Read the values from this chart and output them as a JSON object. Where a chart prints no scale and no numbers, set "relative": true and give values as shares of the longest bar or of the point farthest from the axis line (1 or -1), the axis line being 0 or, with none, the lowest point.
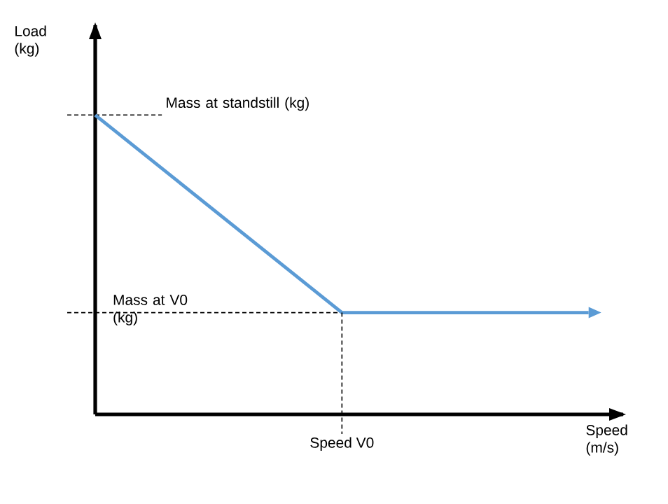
{
  "chart_data": {
    "type": "line",
    "relative": true,
    "xlabel": "Speed (m/s)",
    "annotations": [
      "Load (kg)",
      "Speed  V0"
    ],
    "categories": [
      null,
      null,
      null
    ],
    "series": [
      {
        "color": "#5b9bd5",
        "values": [
          1,
          0.34,
          0.34
        ]
      }
    ],
    "ref_lines": [
      {
        "axis": "y",
        "value": 1,
        "label": "Mass at standstill (kg)",
        "line_style": "dashed",
        "color": "#000000"
      },
      {
        "axis": "y",
        "value": 0.34,
        "label": "Mass at V0 (kg)",
        "line_style": "dashed",
        "color": "#000000"
      }
    ]
  }
}
